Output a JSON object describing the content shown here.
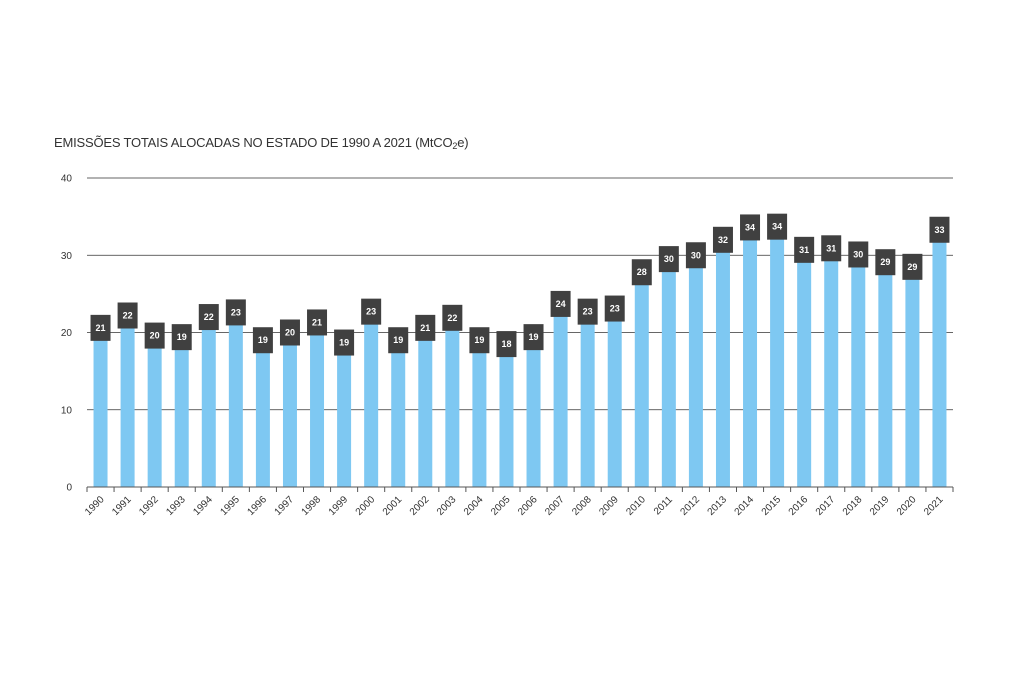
{
  "chart_data": {
    "type": "bar",
    "title_main": "EMISSÕES TOTAIS ALOCADAS NO ESTADO DE 1990 A 2021 (MtCO",
    "title_sub": "2",
    "title_end": "e)",
    "categories": [
      "1990",
      "1991",
      "1992",
      "1993",
      "1994",
      "1995",
      "1996",
      "1997",
      "1998",
      "1999",
      "2000",
      "2001",
      "2002",
      "2003",
      "2004",
      "2005",
      "2006",
      "2007",
      "2008",
      "2009",
      "2010",
      "2011",
      "2012",
      "2013",
      "2014",
      "2015",
      "2016",
      "2017",
      "2018",
      "2019",
      "2020",
      "2021"
    ],
    "values": [
      21,
      22,
      20,
      19,
      22,
      23,
      19,
      20,
      21,
      19,
      23,
      19,
      21,
      22,
      19,
      18,
      19,
      24,
      23,
      23,
      28,
      30,
      30,
      32,
      34,
      34,
      31,
      31,
      30,
      29,
      29,
      33
    ],
    "plotted_values": [
      20.6,
      22.2,
      19.6,
      19.4,
      22.0,
      22.6,
      19.0,
      20.0,
      21.3,
      18.7,
      22.7,
      19.0,
      20.6,
      21.9,
      19.0,
      18.5,
      19.4,
      23.7,
      22.7,
      23.1,
      27.8,
      29.5,
      30.0,
      32.0,
      33.6,
      33.7,
      30.7,
      30.9,
      30.1,
      29.1,
      28.5,
      33.3
    ],
    "y_ticks": [
      "0",
      "10",
      "20",
      "30",
      "40"
    ],
    "ylim": [
      0,
      40
    ],
    "grid": true,
    "bar_color": "#7ec8f2",
    "label_box_color": "#404040",
    "axis_color": "#555555"
  }
}
